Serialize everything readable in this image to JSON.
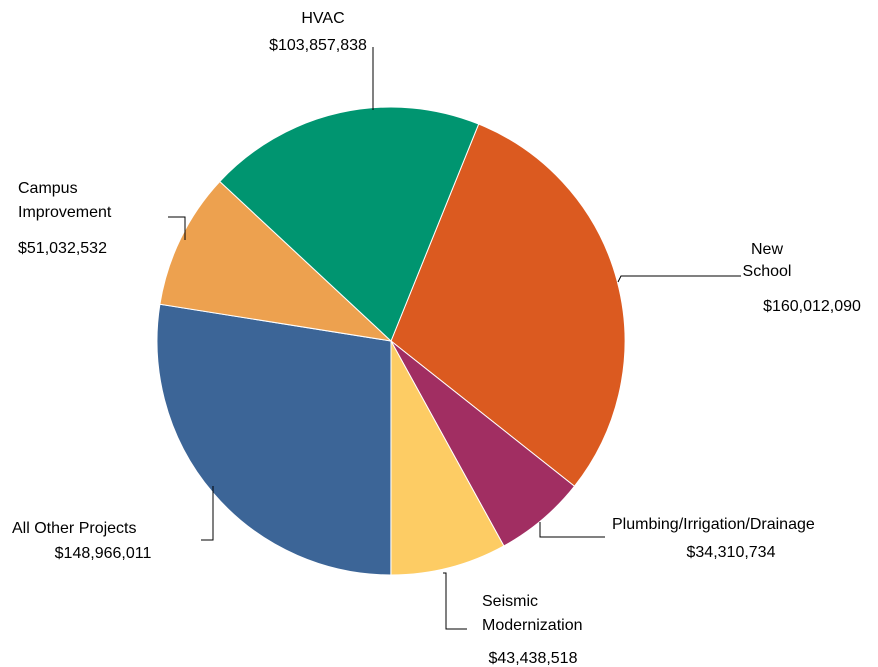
{
  "chart_data": {
    "type": "pie",
    "title": "",
    "start_angle_deg": 22,
    "direction": "clockwise",
    "slices": [
      {
        "label": [
          "New",
          "School"
        ],
        "value_label": "$160,012,090",
        "value": 160012090,
        "color": "#DB5A20"
      },
      {
        "label": [
          "Plumbing/Irrigation/Drainage"
        ],
        "value_label": "$34,310,734",
        "value": 34310734,
        "color": "#A12E62"
      },
      {
        "label": [
          "Seismic",
          "Modernization"
        ],
        "value_label": "$43,438,518",
        "value": 43438518,
        "color": "#FDCC64"
      },
      {
        "label": [
          "All Other Projects"
        ],
        "value_label": "$148,966,011",
        "value": 148966011,
        "color": "#3C6597"
      },
      {
        "label": [
          "Campus",
          "Improvement"
        ],
        "value_label": "$51,032,532",
        "value": 51032532,
        "color": "#EDA14F"
      },
      {
        "label": [
          "HVAC"
        ],
        "value_label": "$103,857,838",
        "value": 103857838,
        "color": "#009570"
      }
    ]
  }
}
